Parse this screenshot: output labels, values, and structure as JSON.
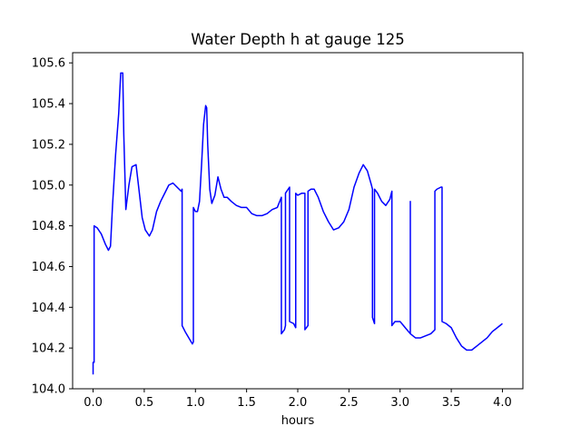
{
  "chart_data": {
    "type": "line",
    "title": "Water Depth h at gauge 125",
    "xlabel": "hours",
    "ylabel": "",
    "xlim": [
      -0.2,
      4.2
    ],
    "ylim": [
      104.0,
      105.65
    ],
    "xticks": [
      "0.0",
      "0.5",
      "1.0",
      "1.5",
      "2.0",
      "2.5",
      "3.0",
      "3.5",
      "4.0"
    ],
    "yticks": [
      "104.0",
      "104.2",
      "104.4",
      "104.6",
      "104.8",
      "105.0",
      "105.2",
      "105.4",
      "105.6"
    ],
    "grid": false,
    "legend": "none",
    "series": [
      {
        "color": "#0000ff",
        "x": [
          0.0,
          0.0,
          0.01,
          0.01,
          0.04,
          0.08,
          0.12,
          0.15,
          0.17,
          0.19,
          0.22,
          0.25,
          0.27,
          0.29,
          0.3,
          0.32,
          0.35,
          0.38,
          0.42,
          0.45,
          0.48,
          0.51,
          0.55,
          0.58,
          0.62,
          0.66,
          0.7,
          0.74,
          0.78,
          0.82,
          0.86,
          0.87,
          0.87,
          0.9,
          0.97,
          0.98,
          0.98,
          1.0,
          1.02,
          1.04,
          1.06,
          1.08,
          1.1,
          1.11,
          1.12,
          1.14,
          1.16,
          1.19,
          1.22,
          1.25,
          1.28,
          1.31,
          1.35,
          1.4,
          1.45,
          1.5,
          1.55,
          1.6,
          1.65,
          1.7,
          1.75,
          1.8,
          1.84,
          1.84,
          1.87,
          1.88,
          1.88,
          1.92,
          1.92,
          1.96,
          1.98,
          1.98,
          2.0,
          2.04,
          2.07,
          2.07,
          2.1,
          2.1,
          2.13,
          2.16,
          2.2,
          2.25,
          2.3,
          2.35,
          2.4,
          2.45,
          2.5,
          2.55,
          2.6,
          2.64,
          2.68,
          2.72,
          2.73,
          2.73,
          2.75,
          2.75,
          2.78,
          2.82,
          2.86,
          2.9,
          2.92,
          2.92,
          2.95,
          3.0,
          3.05,
          3.1,
          3.1,
          3.1,
          3.15,
          3.2,
          3.25,
          3.3,
          3.34,
          3.34,
          3.36,
          3.4,
          3.41,
          3.41,
          3.45,
          3.5,
          3.55,
          3.6,
          3.65,
          3.7,
          3.75,
          3.8,
          3.85,
          3.9,
          3.95,
          4.0
        ],
        "y": [
          104.07,
          104.13,
          104.13,
          104.8,
          104.79,
          104.76,
          104.71,
          104.68,
          104.7,
          104.9,
          105.15,
          105.35,
          105.55,
          105.55,
          105.25,
          104.88,
          105.0,
          105.09,
          105.1,
          104.97,
          104.84,
          104.78,
          104.75,
          104.78,
          104.87,
          104.92,
          104.96,
          105.0,
          105.01,
          104.99,
          104.97,
          104.98,
          104.31,
          104.28,
          104.22,
          104.23,
          104.89,
          104.87,
          104.87,
          104.92,
          105.1,
          105.3,
          105.39,
          105.38,
          105.2,
          104.98,
          104.91,
          104.95,
          105.04,
          104.98,
          104.94,
          104.94,
          104.92,
          104.9,
          104.89,
          104.89,
          104.86,
          104.85,
          104.85,
          104.86,
          104.88,
          104.89,
          104.94,
          104.27,
          104.29,
          104.31,
          104.96,
          104.99,
          104.33,
          104.32,
          104.3,
          104.96,
          104.95,
          104.96,
          104.96,
          104.29,
          104.31,
          104.97,
          104.98,
          104.98,
          104.94,
          104.87,
          104.82,
          104.78,
          104.79,
          104.82,
          104.88,
          104.99,
          105.06,
          105.1,
          105.07,
          105.0,
          104.98,
          104.35,
          104.32,
          104.98,
          104.96,
          104.92,
          104.9,
          104.93,
          104.97,
          104.31,
          104.33,
          104.33,
          104.3,
          104.27,
          104.92,
          104.27,
          104.25,
          104.25,
          104.26,
          104.27,
          104.29,
          104.97,
          104.98,
          104.99,
          104.99,
          104.33,
          104.32,
          104.3,
          104.25,
          104.21,
          104.19,
          104.19,
          104.21,
          104.23,
          104.25,
          104.28,
          104.3,
          104.32
        ]
      }
    ]
  }
}
